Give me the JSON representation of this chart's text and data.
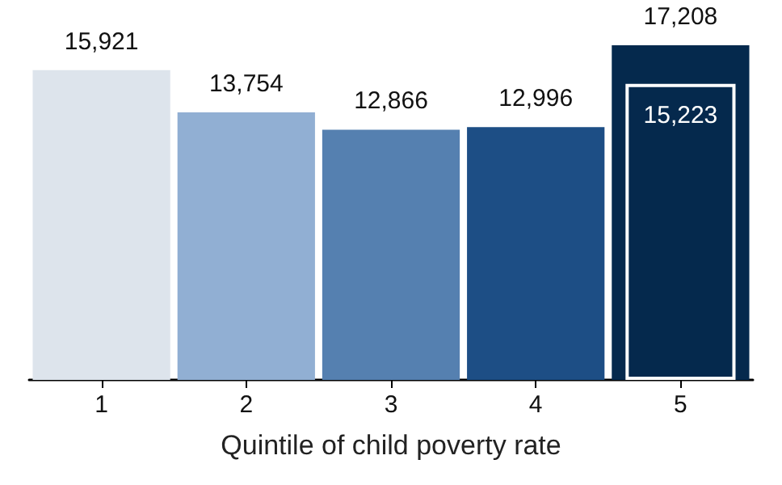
{
  "chart_data": {
    "type": "bar",
    "xlabel": "Quintile of child poverty rate",
    "categories": [
      "1",
      "2",
      "3",
      "4",
      "5"
    ],
    "grid": false,
    "series": [
      {
        "colors": [
          "#dde4ec",
          "#91afd3",
          "#5580b0",
          "#1d4e85",
          "#05294d"
        ],
        "values": [
          15921,
          13754,
          12866,
          12996,
          17208
        ],
        "value_labels": [
          "15,921",
          "13,754",
          "12,866",
          "12,996",
          "17,208"
        ]
      },
      {
        "color": "#ffffff",
        "values": [
          null,
          null,
          null,
          null,
          15223
        ],
        "value_labels": [
          null,
          null,
          null,
          null,
          "15,223"
        ]
      }
    ]
  }
}
